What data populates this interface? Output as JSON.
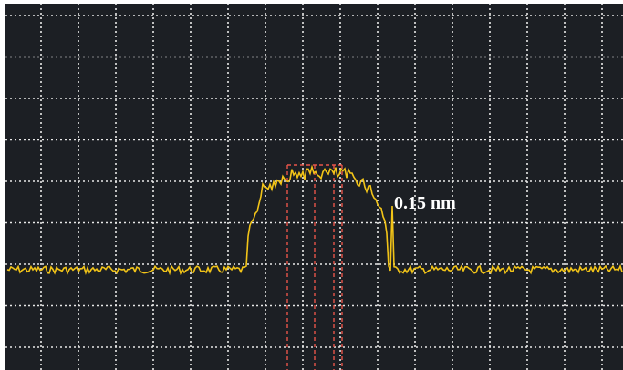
{
  "annotation": "0.15 nm"
}
